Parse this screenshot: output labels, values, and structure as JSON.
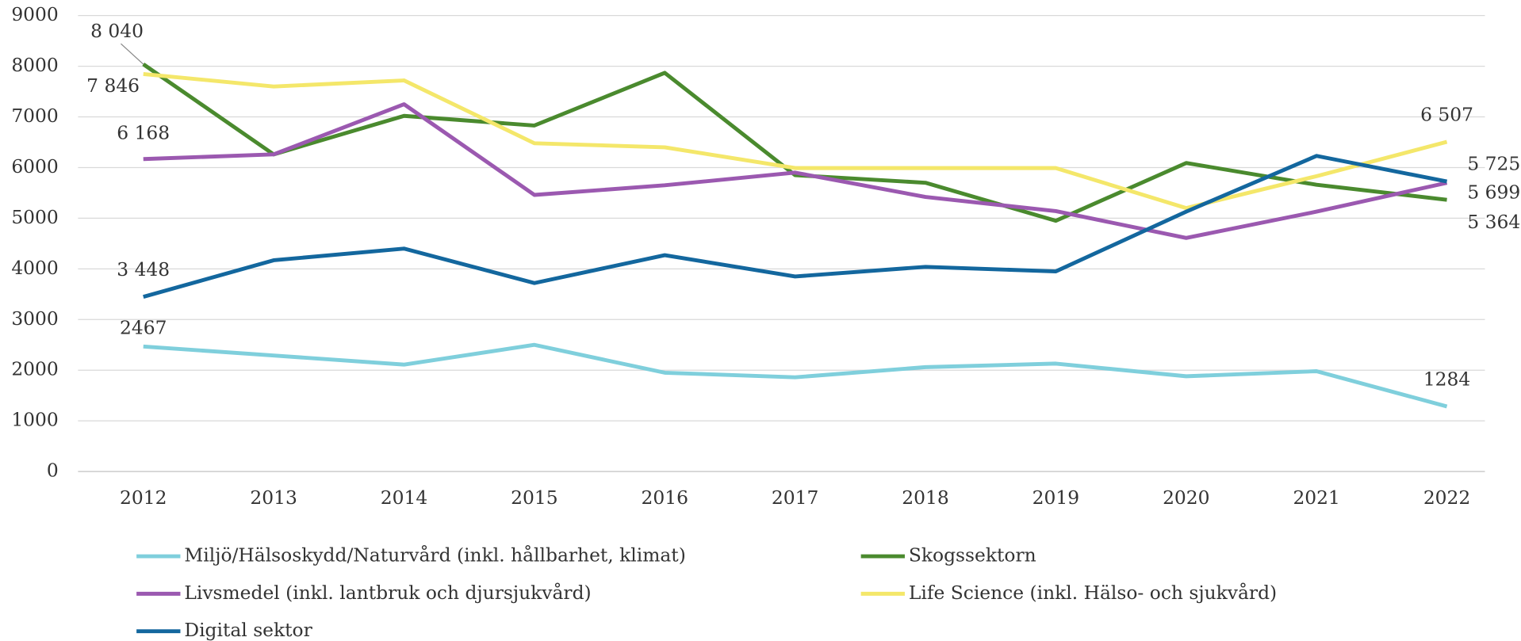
{
  "chart_data": {
    "type": "line",
    "categories": [
      "2012",
      "2013",
      "2014",
      "2015",
      "2016",
      "2017",
      "2018",
      "2019",
      "2020",
      "2021",
      "2022"
    ],
    "ylim": [
      0,
      9000
    ],
    "yticks": [
      0,
      1000,
      2000,
      3000,
      4000,
      5000,
      6000,
      7000,
      8000,
      9000
    ],
    "grid": true,
    "series": [
      {
        "name": "Miljö/Hälsoskydd/Naturvård (inkl. hållbarhet, klimat)",
        "color": "#7fcfdc",
        "values": [
          2467,
          2290,
          2110,
          2500,
          1950,
          1860,
          2060,
          2130,
          1880,
          1980,
          1284
        ],
        "value_labels": [
          "2467",
          null,
          null,
          null,
          null,
          null,
          null,
          null,
          null,
          null,
          "1284"
        ]
      },
      {
        "name": "Skogssektorn",
        "color": "#4a8a2e",
        "values": [
          8040,
          6260,
          7020,
          6830,
          7870,
          5850,
          5700,
          4950,
          6090,
          5660,
          5364
        ],
        "value_labels": [
          "8 040",
          null,
          null,
          null,
          null,
          null,
          null,
          null,
          null,
          null,
          "5 364"
        ]
      },
      {
        "name": "Livsmedel (inkl. lantbruk och djursjukvård)",
        "color": "#9b59b0",
        "values": [
          6168,
          6260,
          7250,
          5460,
          5650,
          5900,
          5420,
          5140,
          4610,
          5130,
          5699
        ],
        "value_labels": [
          "6 168",
          null,
          null,
          null,
          null,
          null,
          null,
          null,
          null,
          null,
          "5 699"
        ]
      },
      {
        "name": "Life Science (inkl. Hälso- och sjukvård)",
        "color": "#f4e76a",
        "values": [
          7846,
          7600,
          7720,
          6480,
          6400,
          5990,
          5990,
          5990,
          5200,
          5830,
          6507
        ],
        "value_labels": [
          "7 846",
          null,
          null,
          null,
          null,
          null,
          null,
          null,
          null,
          null,
          "6 507"
        ]
      },
      {
        "name": "Digital sektor",
        "color": "#13679e",
        "values": [
          3448,
          4170,
          4400,
          3720,
          4270,
          3850,
          4040,
          3950,
          5130,
          6230,
          5725
        ],
        "value_labels": [
          "3 448",
          null,
          null,
          null,
          null,
          null,
          null,
          null,
          null,
          null,
          "5 725"
        ]
      }
    ]
  }
}
